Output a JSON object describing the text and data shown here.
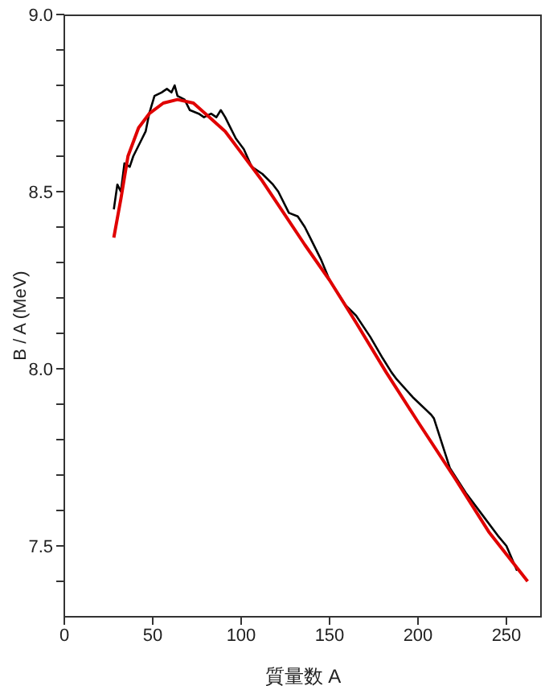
{
  "chart_data": {
    "type": "line",
    "xlabel": "質量数 A",
    "ylabel": "B / A  (MeV)",
    "xlim": [
      0,
      270
    ],
    "xticks": [
      0,
      50,
      100,
      150,
      200,
      250
    ],
    "ylim": [
      7.3,
      9.0
    ],
    "yticks": [
      {
        "value": 7.4,
        "label": null
      },
      7.5,
      {
        "value": 7.6,
        "label": null
      },
      {
        "value": 7.7,
        "label": null
      },
      {
        "value": 7.8,
        "label": null
      },
      {
        "value": 7.9,
        "label": null
      },
      {
        "value": 8.0,
        "label": "8.0"
      },
      {
        "value": 8.1,
        "label": null
      },
      {
        "value": 8.2,
        "label": null
      },
      {
        "value": 8.3,
        "label": null
      },
      {
        "value": 8.4,
        "label": null
      },
      8.5,
      {
        "value": 8.6,
        "label": null
      },
      {
        "value": 8.7,
        "label": null
      },
      {
        "value": 8.8,
        "label": null
      },
      {
        "value": 8.9,
        "label": null
      },
      {
        "value": 9.0,
        "label": "9.0"
      }
    ],
    "series": [
      {
        "color": "#000000",
        "x": [
          28,
          30,
          32,
          34,
          37,
          39,
          44,
          46,
          48,
          51,
          55,
          58,
          60.6,
          62.4,
          64,
          68,
          71,
          76,
          79,
          83,
          86,
          88.5,
          91,
          94,
          97,
          101.5,
          106,
          112,
          118,
          121,
          127,
          132,
          136,
          139,
          145,
          150,
          159,
          165,
          173,
          180,
          185,
          188,
          197,
          207.5,
          209,
          218,
          227,
          236,
          245,
          250,
          256
        ],
        "values": [
          8.45,
          8.52,
          8.5,
          8.58,
          8.57,
          8.6,
          8.65,
          8.67,
          8.72,
          8.77,
          8.78,
          8.79,
          8.78,
          8.8,
          8.77,
          8.76,
          8.73,
          8.72,
          8.71,
          8.72,
          8.71,
          8.73,
          8.71,
          8.68,
          8.65,
          8.62,
          8.57,
          8.55,
          8.52,
          8.5,
          8.44,
          8.43,
          8.4,
          8.37,
          8.31,
          8.25,
          8.18,
          8.15,
          8.09,
          8.03,
          7.99,
          7.97,
          7.92,
          7.87,
          7.86,
          7.72,
          7.65,
          7.59,
          7.53,
          7.5,
          7.43
        ]
      },
      {
        "color": "#e00000",
        "x": [
          28,
          32,
          36,
          42,
          48,
          56,
          64,
          73,
          82,
          91,
          100,
          112,
          124,
          136,
          150,
          165,
          182,
          200,
          221,
          240,
          262
        ],
        "values": [
          8.37,
          8.48,
          8.6,
          8.68,
          8.72,
          8.75,
          8.76,
          8.75,
          8.71,
          8.67,
          8.61,
          8.53,
          8.44,
          8.35,
          8.25,
          8.13,
          7.99,
          7.85,
          7.69,
          7.54,
          7.4
        ]
      }
    ]
  }
}
